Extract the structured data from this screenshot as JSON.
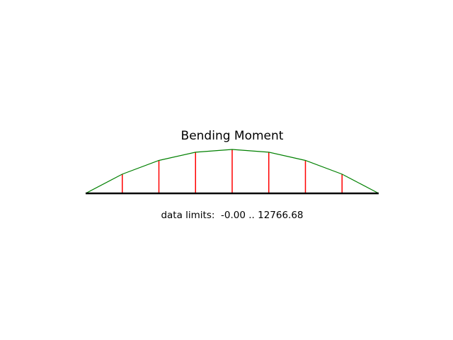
{
  "chart_data": {
    "type": "line",
    "title": "Bending Moment",
    "annotation": "data limits:  -0.00 .. 12766.68",
    "x": [
      0,
      1,
      2,
      3,
      4,
      5,
      6,
      7,
      8
    ],
    "values": [
      0,
      5586,
      9576,
      11969,
      12767,
      11969,
      9576,
      5586,
      0
    ],
    "ylim": [
      0,
      12766.68
    ],
    "grid": false,
    "axes_visible": false,
    "colors": {
      "curve": "#008000",
      "ordinates": "#ff0000",
      "baseline": "#000000"
    }
  }
}
